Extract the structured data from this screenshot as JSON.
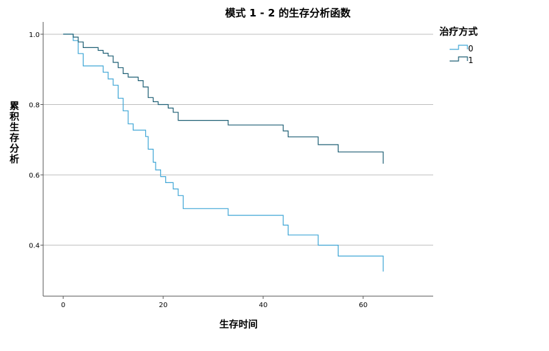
{
  "chart_data": {
    "type": "line",
    "title": "模式 1 - 2 的生存分析函数",
    "xlabel": "生存时间",
    "ylabel": "累积生存分析",
    "xlim": [
      -4,
      74
    ],
    "ylim": [
      0.255,
      1.035
    ],
    "xticks": [
      0,
      20,
      40,
      60
    ],
    "yticks": [
      0.4,
      0.6,
      0.8,
      1.0
    ],
    "ytick_labels": [
      "0.4",
      "0.6",
      "0.8",
      "1.0"
    ],
    "grid": "horizontal",
    "step": true,
    "legend": {
      "title": "治疗方式",
      "placement": "top-right"
    },
    "series": [
      {
        "name": "0",
        "color": "#3fa6d6",
        "points": [
          [
            0,
            1.0
          ],
          [
            2,
            1.0
          ],
          [
            2,
            0.982
          ],
          [
            3,
            0.982
          ],
          [
            3,
            0.945
          ],
          [
            4,
            0.945
          ],
          [
            4,
            0.91
          ],
          [
            8,
            0.91
          ],
          [
            8,
            0.892
          ],
          [
            9,
            0.892
          ],
          [
            9,
            0.873
          ],
          [
            10,
            0.873
          ],
          [
            10,
            0.855
          ],
          [
            11,
            0.855
          ],
          [
            11,
            0.818
          ],
          [
            12,
            0.818
          ],
          [
            12,
            0.782
          ],
          [
            13,
            0.782
          ],
          [
            13,
            0.745
          ],
          [
            14,
            0.745
          ],
          [
            14,
            0.727
          ],
          [
            15,
            0.727
          ],
          [
            16.5,
            0.727
          ],
          [
            16.5,
            0.709
          ],
          [
            17,
            0.709
          ],
          [
            17,
            0.673
          ],
          [
            18,
            0.673
          ],
          [
            18,
            0.636
          ],
          [
            18.5,
            0.636
          ],
          [
            18.5,
            0.614
          ],
          [
            19.5,
            0.614
          ],
          [
            19.5,
            0.595
          ],
          [
            20.5,
            0.595
          ],
          [
            20.5,
            0.578
          ],
          [
            22,
            0.578
          ],
          [
            22,
            0.56
          ],
          [
            23,
            0.56
          ],
          [
            23,
            0.541
          ],
          [
            24,
            0.541
          ],
          [
            24,
            0.504
          ],
          [
            33,
            0.504
          ],
          [
            33,
            0.485
          ],
          [
            44,
            0.485
          ],
          [
            44,
            0.457
          ],
          [
            45,
            0.457
          ],
          [
            45,
            0.429
          ],
          [
            51,
            0.429
          ],
          [
            51,
            0.4
          ],
          [
            55,
            0.4
          ],
          [
            55,
            0.369
          ],
          [
            64,
            0.369
          ],
          [
            64,
            0.325
          ]
        ]
      },
      {
        "name": "1",
        "color": "#1e5f74",
        "points": [
          [
            0,
            1.0
          ],
          [
            2,
            1.0
          ],
          [
            2,
            0.992
          ],
          [
            3,
            0.992
          ],
          [
            3,
            0.978
          ],
          [
            4,
            0.978
          ],
          [
            4,
            0.962
          ],
          [
            7,
            0.962
          ],
          [
            7,
            0.954
          ],
          [
            8,
            0.954
          ],
          [
            8,
            0.946
          ],
          [
            9,
            0.946
          ],
          [
            9,
            0.938
          ],
          [
            10,
            0.938
          ],
          [
            10,
            0.92
          ],
          [
            11,
            0.92
          ],
          [
            11,
            0.905
          ],
          [
            12,
            0.905
          ],
          [
            12,
            0.888
          ],
          [
            13,
            0.888
          ],
          [
            13,
            0.878
          ],
          [
            15,
            0.878
          ],
          [
            15,
            0.868
          ],
          [
            16,
            0.868
          ],
          [
            16,
            0.85
          ],
          [
            17,
            0.85
          ],
          [
            17,
            0.82
          ],
          [
            18,
            0.82
          ],
          [
            18,
            0.808
          ],
          [
            19,
            0.808
          ],
          [
            19,
            0.8
          ],
          [
            21,
            0.8
          ],
          [
            21,
            0.79
          ],
          [
            22,
            0.79
          ],
          [
            22,
            0.778
          ],
          [
            23,
            0.778
          ],
          [
            23,
            0.755
          ],
          [
            33,
            0.755
          ],
          [
            33,
            0.742
          ],
          [
            44,
            0.742
          ],
          [
            44,
            0.725
          ],
          [
            45,
            0.725
          ],
          [
            45,
            0.708
          ],
          [
            51,
            0.708
          ],
          [
            51,
            0.686
          ],
          [
            55,
            0.686
          ],
          [
            55,
            0.665
          ],
          [
            64,
            0.665
          ],
          [
            64,
            0.632
          ]
        ]
      }
    ]
  }
}
